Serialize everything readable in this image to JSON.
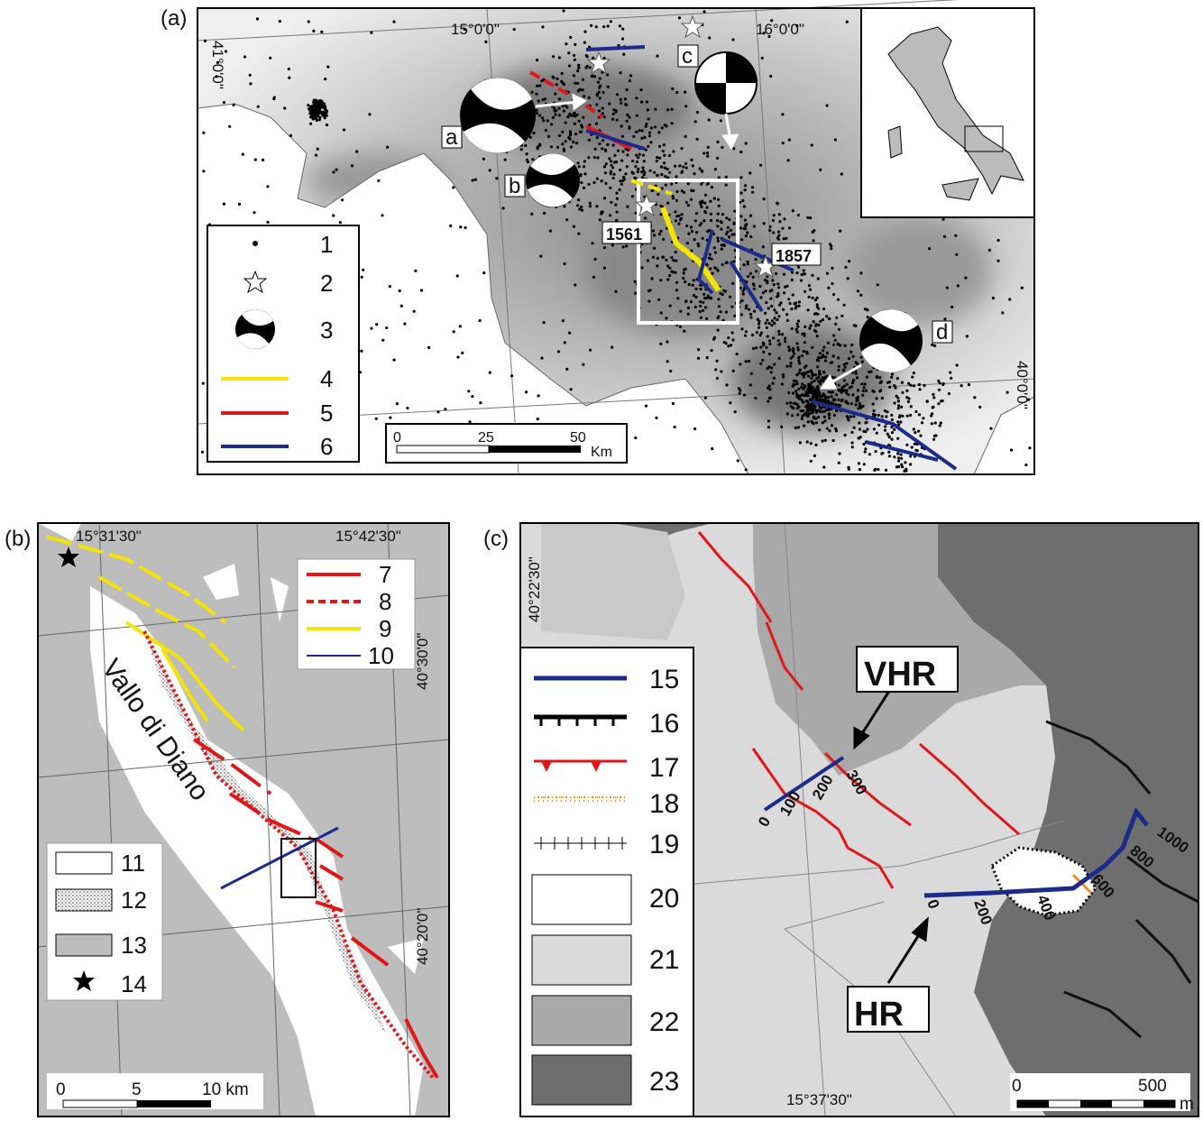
{
  "panel_a": {
    "label": "(a)",
    "longitudes": [
      "15°0'0\"",
      "16°0'0\""
    ],
    "latitudes": [
      "41°0'0\"",
      "40°0'0\""
    ],
    "focal_labels": [
      "a",
      "b",
      "c",
      "d"
    ],
    "events": [
      "1561",
      "1857"
    ],
    "legend": [
      "1",
      "2",
      "3",
      "4",
      "5",
      "6"
    ],
    "scale": [
      "0",
      "25",
      "50",
      "Km"
    ]
  },
  "panel_b": {
    "label": "(b)",
    "longitudes": [
      "15°31'30\"",
      "15°42'30\""
    ],
    "latitudes": [
      "40°30'0\"",
      "40°20'0\""
    ],
    "place": "Vallo di Diano",
    "legend_lines": [
      "7",
      "8",
      "9",
      "10"
    ],
    "legend_units": [
      "11",
      "12",
      "13",
      "14"
    ],
    "scale": [
      "0",
      "5",
      "10 km"
    ]
  },
  "panel_c": {
    "label": "(c)",
    "latitude": "40°22'30\"",
    "longitude": "15°37'30\"",
    "profiles": [
      "VHR",
      "HR"
    ],
    "vhr_distances": [
      "0",
      "100",
      "200",
      "300"
    ],
    "hr_distances": [
      "0",
      "200",
      "400",
      "600",
      "800",
      "1000"
    ],
    "legend": [
      "15",
      "16",
      "17",
      "18",
      "19",
      "20",
      "21",
      "22",
      "23"
    ],
    "scale": [
      "0",
      "500",
      "m"
    ]
  }
}
